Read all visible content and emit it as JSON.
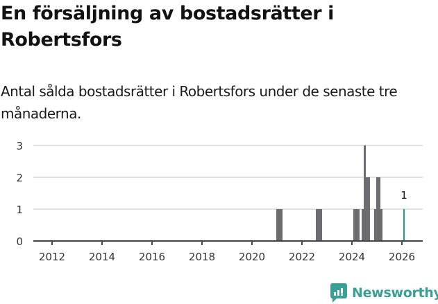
{
  "title": "En försäljning av bostadsrätter i Robertsfors",
  "subtitle": "Antal sålda bostadsrätter i Robertsfors under de senaste tre månaderna.",
  "logo": {
    "text": "Newsworthy",
    "color": "#3a9f96"
  },
  "colors": {
    "bar": "#6d6c71",
    "highlight": "#1a9c8f",
    "grid": "#e2e2e2",
    "axis": "#444444"
  },
  "chart_data": {
    "type": "bar",
    "title": "En försäljning av bostadsrätter i Robertsfors",
    "subtitle": "Antal sålda bostadsrätter i Robertsfors under de senaste tre månaderna.",
    "xlabel": "",
    "ylabel": "",
    "ylim": [
      0,
      3
    ],
    "yticks": [
      0,
      1,
      2,
      3
    ],
    "xticks": [
      "2012",
      "2014",
      "2016",
      "2018",
      "2020",
      "2022",
      "2024",
      "2026"
    ],
    "xrange": [
      "2011-06",
      "2026-12"
    ],
    "grid": true,
    "legend": null,
    "granularity": "month",
    "categories": [
      "2020-12",
      "2021-01",
      "2021-02",
      "2022-07",
      "2022-08",
      "2022-09",
      "2024-01",
      "2024-02",
      "2024-03",
      "2024-05",
      "2024-06",
      "2024-07",
      "2024-08",
      "2024-11",
      "2024-12",
      "2025-01",
      "2025-02",
      "2026-01"
    ],
    "values": [
      1,
      1,
      1,
      1,
      1,
      1,
      1,
      1,
      1,
      1,
      3,
      2,
      2,
      1,
      2,
      2,
      1,
      1
    ],
    "highlight": {
      "category": "2026-01",
      "value": 1,
      "label": "1"
    },
    "note": "All other months from 2011 to 2026 have value 0"
  }
}
